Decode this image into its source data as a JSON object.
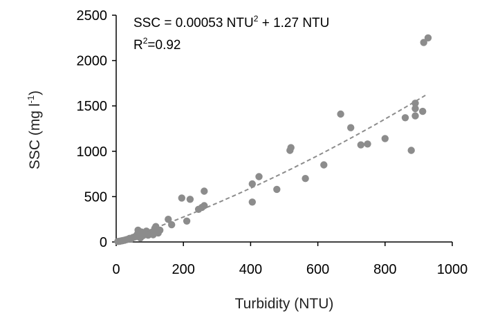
{
  "chart_data": {
    "type": "scatter",
    "title": "",
    "xlabel": "Turbidity (NTU)",
    "ylabel_main": "SSC (mg l",
    "ylabel_sup": "-1",
    "ylabel_close": ")",
    "xlim": [
      0,
      1000
    ],
    "ylim": [
      0,
      2500
    ],
    "xticks": [
      "0",
      "200",
      "400",
      "600",
      "800",
      "1000"
    ],
    "yticks": [
      "0",
      "500",
      "1000",
      "1500",
      "2000",
      "2500"
    ],
    "grid": false,
    "equation": {
      "line1_prefix": "SSC = 0.00053 NTU",
      "line1_sup": "2",
      "line1_suffix": " + 1.27 NTU",
      "line2_prefix": "R",
      "line2_sup": "2",
      "line2_suffix": "=0.92"
    },
    "fit": {
      "type": "polynomial",
      "a": 0.00053,
      "b": 1.27,
      "x_range": [
        0,
        920
      ]
    },
    "colors": {
      "points": "#8c8c8c",
      "fit": "#8c8c8c",
      "axis": "#000000"
    },
    "points": [
      [
        5,
        5
      ],
      [
        10,
        8
      ],
      [
        15,
        12
      ],
      [
        20,
        15
      ],
      [
        25,
        20
      ],
      [
        30,
        25
      ],
      [
        35,
        30
      ],
      [
        40,
        40
      ],
      [
        45,
        35
      ],
      [
        50,
        50
      ],
      [
        55,
        55
      ],
      [
        60,
        60
      ],
      [
        62,
        80
      ],
      [
        65,
        130
      ],
      [
        70,
        100
      ],
      [
        72,
        45
      ],
      [
        75,
        110
      ],
      [
        80,
        70
      ],
      [
        85,
        90
      ],
      [
        90,
        120
      ],
      [
        95,
        75
      ],
      [
        100,
        85
      ],
      [
        105,
        95
      ],
      [
        110,
        80
      ],
      [
        115,
        150
      ],
      [
        118,
        170
      ],
      [
        120,
        110
      ],
      [
        125,
        100
      ],
      [
        130,
        130
      ],
      [
        155,
        250
      ],
      [
        165,
        190
      ],
      [
        195,
        485
      ],
      [
        210,
        230
      ],
      [
        220,
        470
      ],
      [
        245,
        360
      ],
      [
        255,
        380
      ],
      [
        262,
        400
      ],
      [
        262,
        560
      ],
      [
        405,
        440
      ],
      [
        405,
        640
      ],
      [
        425,
        720
      ],
      [
        478,
        580
      ],
      [
        517,
        1010
      ],
      [
        520,
        1040
      ],
      [
        563,
        700
      ],
      [
        618,
        850
      ],
      [
        668,
        1410
      ],
      [
        698,
        1260
      ],
      [
        728,
        1070
      ],
      [
        748,
        1080
      ],
      [
        800,
        1140
      ],
      [
        860,
        1370
      ],
      [
        878,
        1010
      ],
      [
        890,
        1390
      ],
      [
        890,
        1470
      ],
      [
        890,
        1530
      ],
      [
        912,
        1440
      ],
      [
        915,
        2200
      ],
      [
        928,
        2250
      ]
    ]
  }
}
